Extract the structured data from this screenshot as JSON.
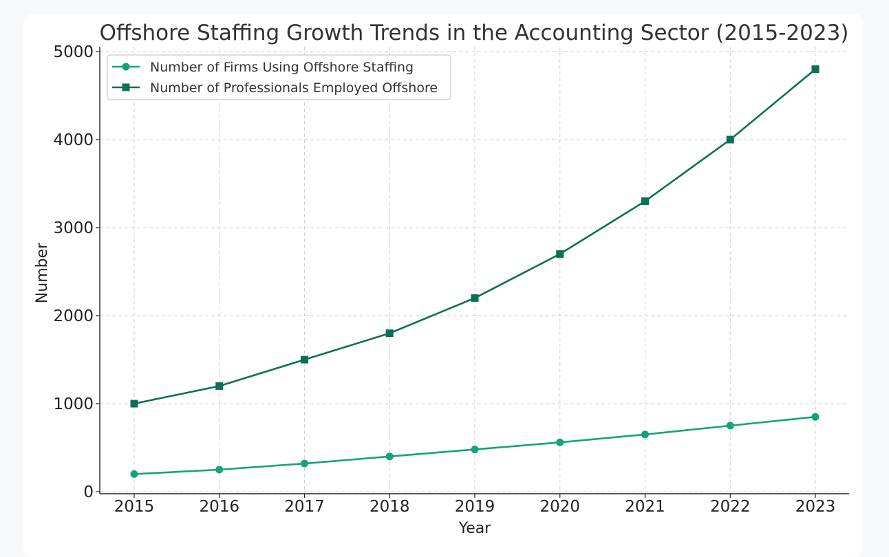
{
  "chart_data": {
    "type": "line",
    "title": "Offshore Staffing Growth Trends in the Accounting Sector (2015-2023)",
    "xlabel": "Year",
    "ylabel": "Number",
    "categories": [
      "2015",
      "2016",
      "2017",
      "2018",
      "2019",
      "2020",
      "2021",
      "2022",
      "2023"
    ],
    "y_ticks": [
      "0",
      "1000",
      "2000",
      "3000",
      "4000",
      "5000"
    ],
    "ylim": [
      0,
      5000
    ],
    "grid": true,
    "legend_position": "top-left",
    "series": [
      {
        "name": "Number of Firms Using Offshore Staffing",
        "marker": "circle",
        "color": "#12a37b",
        "values": [
          200,
          250,
          320,
          400,
          480,
          560,
          650,
          750,
          850
        ]
      },
      {
        "name": "Number of Professionals Employed Offshore",
        "marker": "square",
        "color": "#0b7055",
        "values": [
          1000,
          1200,
          1500,
          1800,
          2200,
          2700,
          3300,
          4000,
          4800
        ]
      }
    ]
  }
}
